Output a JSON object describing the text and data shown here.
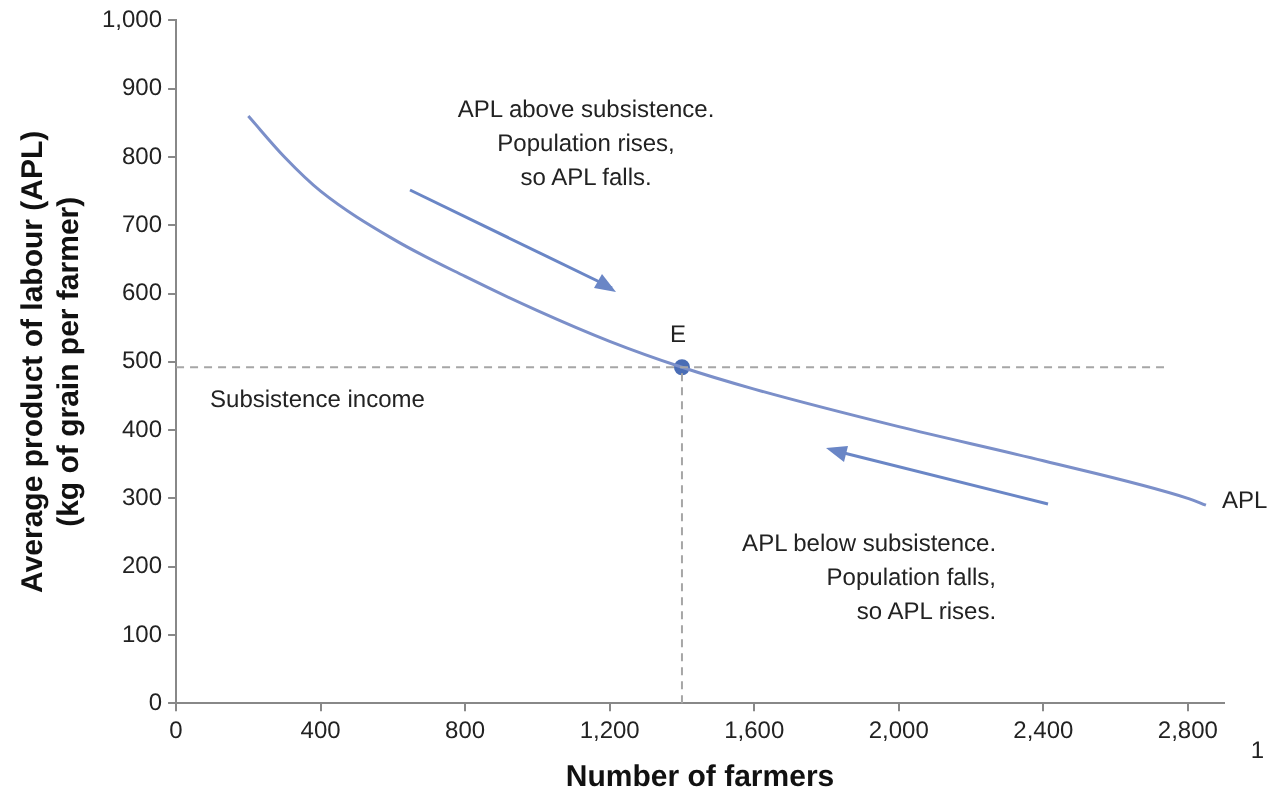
{
  "chart_data": {
    "type": "line",
    "xlabel": "Number of farmers",
    "ylabel": "Average product of labour (APL)\n(kg of grain per farmer)",
    "x": [
      200,
      300,
      400,
      600,
      800,
      1000,
      1200,
      1400,
      1600,
      2000,
      2400,
      2800,
      2850
    ],
    "series": [
      {
        "name": "APL",
        "color": "#7b8fc9",
        "values": [
          860,
          800,
          750,
          680,
          625,
          575,
          530,
          492,
          460,
          405,
          355,
          300,
          290
        ]
      },
      {
        "type": "scatter",
        "marker": "circle",
        "color": "#4a6db5",
        "x": [
          1400
        ],
        "values": [
          492
        ]
      }
    ],
    "xlim": [
      0,
      2900
    ],
    "xticks": [
      {
        "value": 0,
        "label": "0"
      },
      {
        "value": 400,
        "label": "400"
      },
      {
        "value": 800,
        "label": "800"
      },
      {
        "value": 1200,
        "label": "1,200"
      },
      {
        "value": 1600,
        "label": "1,600"
      },
      {
        "value": 2000,
        "label": "2,000"
      },
      {
        "value": 2400,
        "label": "2,400"
      },
      {
        "value": 2800,
        "label": "2,800"
      }
    ],
    "ylim": [
      0,
      1000
    ],
    "yticks": [
      0,
      100,
      200,
      300,
      400,
      500,
      600,
      700,
      800,
      900,
      {
        "value": 1000,
        "label": "1,000"
      }
    ],
    "grid": false,
    "legend": false,
    "marker": "none",
    "ref_lines": [
      {
        "axis": "y",
        "value": 492,
        "label": "Subsistence income",
        "color": "#a6a6a6",
        "line_style": "dashed"
      },
      {
        "axis": "x",
        "value": 1400,
        "color": "#a6a6a6",
        "line_style": "dashed"
      }
    ],
    "annotations": [
      {
        "text": "E",
        "x": 1400,
        "y": 492
      },
      "APL above subsistence.\nPopulation rises,\nso APL falls.",
      "APL below subsistence.\nPopulation falls,\nso APL rises.",
      "1"
    ]
  }
}
